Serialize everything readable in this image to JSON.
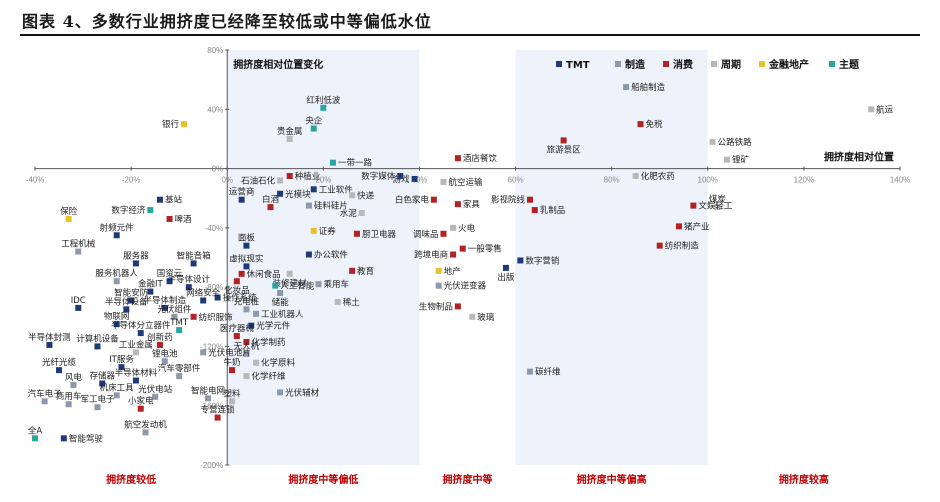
{
  "figure_title": "图表 4、多数行业拥挤度已经降至较低或中等偏低水位",
  "chart_data": {
    "type": "scatter",
    "xlabel": "拥挤度相对位置",
    "ylabel": "拥挤度相对位置变化",
    "xlim": [
      -40,
      140
    ],
    "ylim": [
      -200,
      80
    ],
    "x_ticks": [
      "-40%",
      "-20%",
      "0%",
      "20%",
      "40%",
      "60%",
      "80%",
      "100%",
      "120%",
      "140%"
    ],
    "y_ticks": [
      "80%",
      "40%",
      "0%",
      "-40%",
      "-80%",
      "-120%",
      "-160%",
      "-200%"
    ],
    "legend_position": "top-right",
    "categories": [
      {
        "key": "tmt",
        "name": "TMT",
        "color": "#1f3a7a"
      },
      {
        "key": "mfg",
        "name": "制造",
        "color": "#8c99ad"
      },
      {
        "key": "con",
        "name": "消费",
        "color": "#b22222"
      },
      {
        "key": "cyc",
        "name": "周期",
        "color": "#b8b8b8"
      },
      {
        "key": "fin",
        "name": "金融地产",
        "color": "#e6c229"
      },
      {
        "key": "thm",
        "name": "主题",
        "color": "#2aa3a3"
      }
    ],
    "zones": [
      {
        "label": "拥挤度较低",
        "from": -40,
        "to": 0
      },
      {
        "label": "拥挤度中等偏低",
        "from": 0,
        "to": 40
      },
      {
        "label": "拥挤度中等",
        "from": 40,
        "to": 60
      },
      {
        "label": "拥挤度中等偏高",
        "from": 60,
        "to": 100
      },
      {
        "label": "拥挤度较高",
        "from": 100,
        "to": 140
      }
    ],
    "points": [
      {
        "name": "航运",
        "x": 134,
        "y": 40,
        "cat": "cyc",
        "lp": "r"
      },
      {
        "name": "公路铁路",
        "x": 101,
        "y": 18,
        "cat": "cyc",
        "lp": "r"
      },
      {
        "name": "锂矿",
        "x": 104,
        "y": 6,
        "cat": "cyc",
        "lp": "r"
      },
      {
        "name": "船舶制造",
        "x": 83,
        "y": 55,
        "cat": "mfg",
        "lp": "r"
      },
      {
        "name": "免税",
        "x": 86,
        "y": 30,
        "cat": "con",
        "lp": "r"
      },
      {
        "name": "旅游景区",
        "x": 70,
        "y": 19,
        "cat": "con",
        "lp": "b"
      },
      {
        "name": "化肥农药",
        "x": 85,
        "y": -5,
        "cat": "cyc",
        "lp": "r"
      },
      {
        "name": "煤炭",
        "x": 102,
        "y": -26,
        "cat": "cyc",
        "lp": "t"
      },
      {
        "name": "文娱轻工",
        "x": 97,
        "y": -25,
        "cat": "con",
        "lp": "r"
      },
      {
        "name": "猪产业",
        "x": 94,
        "y": -39,
        "cat": "con",
        "lp": "r"
      },
      {
        "name": "纺织制造",
        "x": 90,
        "y": -52,
        "cat": "con",
        "lp": "r"
      },
      {
        "name": "影视院线",
        "x": 63,
        "y": -21,
        "cat": "con",
        "lp": "l"
      },
      {
        "name": "乳制品",
        "x": 64,
        "y": -28,
        "cat": "con",
        "lp": "r"
      },
      {
        "name": "数字营销",
        "x": 61,
        "y": -62,
        "cat": "tmt",
        "lp": "r"
      },
      {
        "name": "碳纤维",
        "x": 63,
        "y": -137,
        "cat": "mfg",
        "lp": "r"
      },
      {
        "name": "酒店餐饮",
        "x": 48,
        "y": 7,
        "cat": "con",
        "lp": "r"
      },
      {
        "name": "游戏",
        "x": 39,
        "y": -7,
        "cat": "tmt",
        "lp": "l"
      },
      {
        "name": "航空运输",
        "x": 45,
        "y": -9,
        "cat": "cyc",
        "lp": "r"
      },
      {
        "name": "白色家电",
        "x": 43,
        "y": -21,
        "cat": "con",
        "lp": "l"
      },
      {
        "name": "家具",
        "x": 48,
        "y": -24,
        "cat": "con",
        "lp": "r"
      },
      {
        "name": "火电",
        "x": 47,
        "y": -40,
        "cat": "cyc",
        "lp": "r"
      },
      {
        "name": "调味品",
        "x": 45,
        "y": -44,
        "cat": "con",
        "lp": "l"
      },
      {
        "name": "一般零售",
        "x": 49,
        "y": -54,
        "cat": "con",
        "lp": "r"
      },
      {
        "name": "跨境电商",
        "x": 47,
        "y": -58,
        "cat": "con",
        "lp": "l"
      },
      {
        "name": "地产",
        "x": 44,
        "y": -69,
        "cat": "fin",
        "lp": "r"
      },
      {
        "name": "出版",
        "x": 58,
        "y": -67,
        "cat": "tmt",
        "lp": "b"
      },
      {
        "name": "光伏逆变器",
        "x": 44,
        "y": -79,
        "cat": "mfg",
        "lp": "r"
      },
      {
        "name": "生物制品",
        "x": 48,
        "y": -93,
        "cat": "con",
        "lp": "l"
      },
      {
        "name": "玻璃",
        "x": 51,
        "y": -100,
        "cat": "cyc",
        "lp": "r"
      },
      {
        "name": "红利低波",
        "x": 20,
        "y": 41,
        "cat": "thm",
        "lp": "t"
      },
      {
        "name": "央企",
        "x": 18,
        "y": 27,
        "cat": "thm",
        "lp": "t"
      },
      {
        "name": "贵金属",
        "x": 13,
        "y": 20,
        "cat": "cyc",
        "lp": "t"
      },
      {
        "name": "一带一路",
        "x": 22,
        "y": 4,
        "cat": "thm",
        "lp": "r"
      },
      {
        "name": "数字媒体",
        "x": 36,
        "y": -5,
        "cat": "tmt",
        "lp": "l"
      },
      {
        "name": "种植业",
        "x": 13,
        "y": -5,
        "cat": "con",
        "lp": "r"
      },
      {
        "name": "石油石化",
        "x": 11,
        "y": -8,
        "cat": "cyc",
        "lp": "l"
      },
      {
        "name": "工业软件",
        "x": 18,
        "y": -14,
        "cat": "tmt",
        "lp": "r"
      },
      {
        "name": "快递",
        "x": 26,
        "y": -18,
        "cat": "cyc",
        "lp": "r"
      },
      {
        "name": "光模块",
        "x": 11,
        "y": -17,
        "cat": "tmt",
        "lp": "r"
      },
      {
        "name": "运营商",
        "x": 3,
        "y": -21,
        "cat": "tmt",
        "lp": "t"
      },
      {
        "name": "硅料硅片",
        "x": 17,
        "y": -25,
        "cat": "mfg",
        "lp": "r"
      },
      {
        "name": "白酒",
        "x": 9,
        "y": -26,
        "cat": "con",
        "lp": "t"
      },
      {
        "name": "水泥",
        "x": 28,
        "y": -30,
        "cat": "cyc",
        "lp": "l"
      },
      {
        "name": "证券",
        "x": 18,
        "y": -42,
        "cat": "fin",
        "lp": "r"
      },
      {
        "name": "厨卫电器",
        "x": 27,
        "y": -44,
        "cat": "con",
        "lp": "r"
      },
      {
        "name": "面板",
        "x": 4,
        "y": -52,
        "cat": "tmt",
        "lp": "t"
      },
      {
        "name": "办公软件",
        "x": 17,
        "y": -58,
        "cat": "tmt",
        "lp": "r"
      },
      {
        "name": "虚拟现实",
        "x": 4,
        "y": -66,
        "cat": "tmt",
        "lp": "t"
      },
      {
        "name": "休闲食品",
        "x": 3,
        "y": -71,
        "cat": "con",
        "lp": "r"
      },
      {
        "name": "装修建材",
        "x": 13,
        "y": -71,
        "cat": "cyc",
        "lp": "b"
      },
      {
        "name": "教育",
        "x": 26,
        "y": -69,
        "cat": "con",
        "lp": "r"
      },
      {
        "name": "化妆品",
        "x": 2,
        "y": -76,
        "cat": "con",
        "lp": "b"
      },
      {
        "name": "人工智能",
        "x": 10,
        "y": -79,
        "cat": "thm",
        "lp": "r"
      },
      {
        "name": "乘用车",
        "x": 19,
        "y": -78,
        "cat": "mfg",
        "lp": "r"
      },
      {
        "name": "储能",
        "x": 11,
        "y": -84,
        "cat": "mfg",
        "lp": "b"
      },
      {
        "name": "稀土",
        "x": 23,
        "y": -90,
        "cat": "cyc",
        "lp": "r"
      },
      {
        "name": "操作系统",
        "x": -2,
        "y": -87,
        "cat": "tmt",
        "lp": "r"
      },
      {
        "name": "充电桩",
        "x": 4,
        "y": -95,
        "cat": "mfg",
        "lp": "t"
      },
      {
        "name": "工业机器人",
        "x": 6,
        "y": -98,
        "cat": "mfg",
        "lp": "r"
      },
      {
        "name": "纺织服饰",
        "x": -7,
        "y": -100,
        "cat": "con",
        "lp": "r"
      },
      {
        "name": "光学元件",
        "x": 5,
        "y": -106,
        "cat": "tmt",
        "lp": "r"
      },
      {
        "name": "医疗器械",
        "x": 2,
        "y": -113,
        "cat": "con",
        "lp": "t"
      },
      {
        "name": "化学制药",
        "x": 4,
        "y": -117,
        "cat": "con",
        "lp": "r"
      },
      {
        "name": "无人机",
        "x": 4,
        "y": -125,
        "cat": "mfg",
        "lp": "t"
      },
      {
        "name": "光伏电池片",
        "x": -5,
        "y": -124,
        "cat": "mfg",
        "lp": "r"
      },
      {
        "name": "化学原料",
        "x": 6,
        "y": -131,
        "cat": "cyc",
        "lp": "r"
      },
      {
        "name": "牛奶",
        "x": 1,
        "y": -136,
        "cat": "con",
        "lp": "t"
      },
      {
        "name": "化学纤维",
        "x": 4,
        "y": -140,
        "cat": "cyc",
        "lp": "r"
      },
      {
        "name": "光伏辅材",
        "x": 11,
        "y": -151,
        "cat": "mfg",
        "lp": "r"
      },
      {
        "name": "塑料",
        "x": 1,
        "y": -157,
        "cat": "cyc",
        "lp": "t"
      },
      {
        "name": "银行",
        "x": -9,
        "y": 30,
        "cat": "fin",
        "lp": "l"
      },
      {
        "name": "基站",
        "x": -14,
        "y": -21,
        "cat": "tmt",
        "lp": "r"
      },
      {
        "name": "数字经济",
        "x": -16,
        "y": -28,
        "cat": "thm",
        "lp": "l"
      },
      {
        "name": "啤酒",
        "x": -12,
        "y": -34,
        "cat": "con",
        "lp": "r"
      },
      {
        "name": "保险",
        "x": -33,
        "y": -34,
        "cat": "fin",
        "lp": "t"
      },
      {
        "name": "射频元件",
        "x": -23,
        "y": -45,
        "cat": "tmt",
        "lp": "t"
      },
      {
        "name": "工程机械",
        "x": -31,
        "y": -56,
        "cat": "mfg",
        "lp": "t"
      },
      {
        "name": "服务器",
        "x": -19,
        "y": -64,
        "cat": "tmt",
        "lp": "t"
      },
      {
        "name": "智能音箱",
        "x": -7,
        "y": -64,
        "cat": "tmt",
        "lp": "t"
      },
      {
        "name": "国资云",
        "x": -12,
        "y": -76,
        "cat": "tmt",
        "lp": "t"
      },
      {
        "name": "服务机器人",
        "x": -23,
        "y": -76,
        "cat": "mfg",
        "lp": "t"
      },
      {
        "name": "金融IT",
        "x": -16,
        "y": -83,
        "cat": "tmt",
        "lp": "t"
      },
      {
        "name": "半导体设计",
        "x": -8,
        "y": -80,
        "cat": "tmt",
        "lp": "t"
      },
      {
        "name": "网络安全",
        "x": -5,
        "y": -89,
        "cat": "tmt",
        "lp": "t"
      },
      {
        "name": "智能安防",
        "x": -20,
        "y": -89,
        "cat": "tmt",
        "lp": "t"
      },
      {
        "name": "IDC",
        "x": -31,
        "y": -94,
        "cat": "tmt",
        "lp": "t"
      },
      {
        "name": "半导体设备",
        "x": -21,
        "y": -95,
        "cat": "tmt",
        "lp": "t"
      },
      {
        "name": "半导体制造",
        "x": -13,
        "y": -94,
        "cat": "tmt",
        "lp": "t"
      },
      {
        "name": "光伏组件",
        "x": -11,
        "y": -100,
        "cat": "mfg",
        "lp": "t"
      },
      {
        "name": "物联网",
        "x": -23,
        "y": -105,
        "cat": "tmt",
        "lp": "t"
      },
      {
        "name": "半导体分立器件",
        "x": -18,
        "y": -111,
        "cat": "tmt",
        "lp": "t"
      },
      {
        "name": "TMT",
        "x": -10,
        "y": -109,
        "cat": "thm",
        "lp": "t"
      },
      {
        "name": "半导体封测",
        "x": -37,
        "y": -119,
        "cat": "tmt",
        "lp": "t"
      },
      {
        "name": "计算机设备",
        "x": -27,
        "y": -120,
        "cat": "tmt",
        "lp": "t"
      },
      {
        "name": "工业金属",
        "x": -19,
        "y": -124,
        "cat": "cyc",
        "lp": "t"
      },
      {
        "name": "创新药",
        "x": -14,
        "y": -119,
        "cat": "con",
        "lp": "t"
      },
      {
        "name": "光纤光缆",
        "x": -35,
        "y": -136,
        "cat": "tmt",
        "lp": "t"
      },
      {
        "name": "IT服务",
        "x": -22,
        "y": -134,
        "cat": "tmt",
        "lp": "t"
      },
      {
        "name": "锂电池",
        "x": -13,
        "y": -130,
        "cat": "mfg",
        "lp": "t"
      },
      {
        "name": "风电",
        "x": -32,
        "y": -146,
        "cat": "mfg",
        "lp": "t"
      },
      {
        "name": "存储器",
        "x": -26,
        "y": -145,
        "cat": "tmt",
        "lp": "t"
      },
      {
        "name": "半导体材料",
        "x": -19,
        "y": -143,
        "cat": "tmt",
        "lp": "t"
      },
      {
        "name": "汽车零部件",
        "x": -10,
        "y": -140,
        "cat": "mfg",
        "lp": "t"
      },
      {
        "name": "机床工具",
        "x": -23,
        "y": -153,
        "cat": "mfg",
        "lp": "t"
      },
      {
        "name": "光伏电站",
        "x": -15,
        "y": -154,
        "cat": "mfg",
        "lp": "t"
      },
      {
        "name": "智能电网",
        "x": -4,
        "y": -155,
        "cat": "mfg",
        "lp": "t"
      },
      {
        "name": "汽车电子",
        "x": -38,
        "y": -157,
        "cat": "mfg",
        "lp": "t"
      },
      {
        "name": "商用车",
        "x": -33,
        "y": -159,
        "cat": "mfg",
        "lp": "t"
      },
      {
        "name": "军工电子",
        "x": -27,
        "y": -161,
        "cat": "mfg",
        "lp": "t"
      },
      {
        "name": "小家电",
        "x": -18,
        "y": -162,
        "cat": "con",
        "lp": "t"
      },
      {
        "name": "专营连锁",
        "x": -2,
        "y": -168,
        "cat": "con",
        "lp": "t"
      },
      {
        "name": "航空发动机",
        "x": -17,
        "y": -178,
        "cat": "mfg",
        "lp": "t"
      },
      {
        "name": "全A",
        "x": -40,
        "y": -182,
        "cat": "thm",
        "lp": "t"
      },
      {
        "name": "智能驾驶",
        "x": -34,
        "y": -182,
        "cat": "tmt",
        "lp": "r"
      }
    ]
  }
}
